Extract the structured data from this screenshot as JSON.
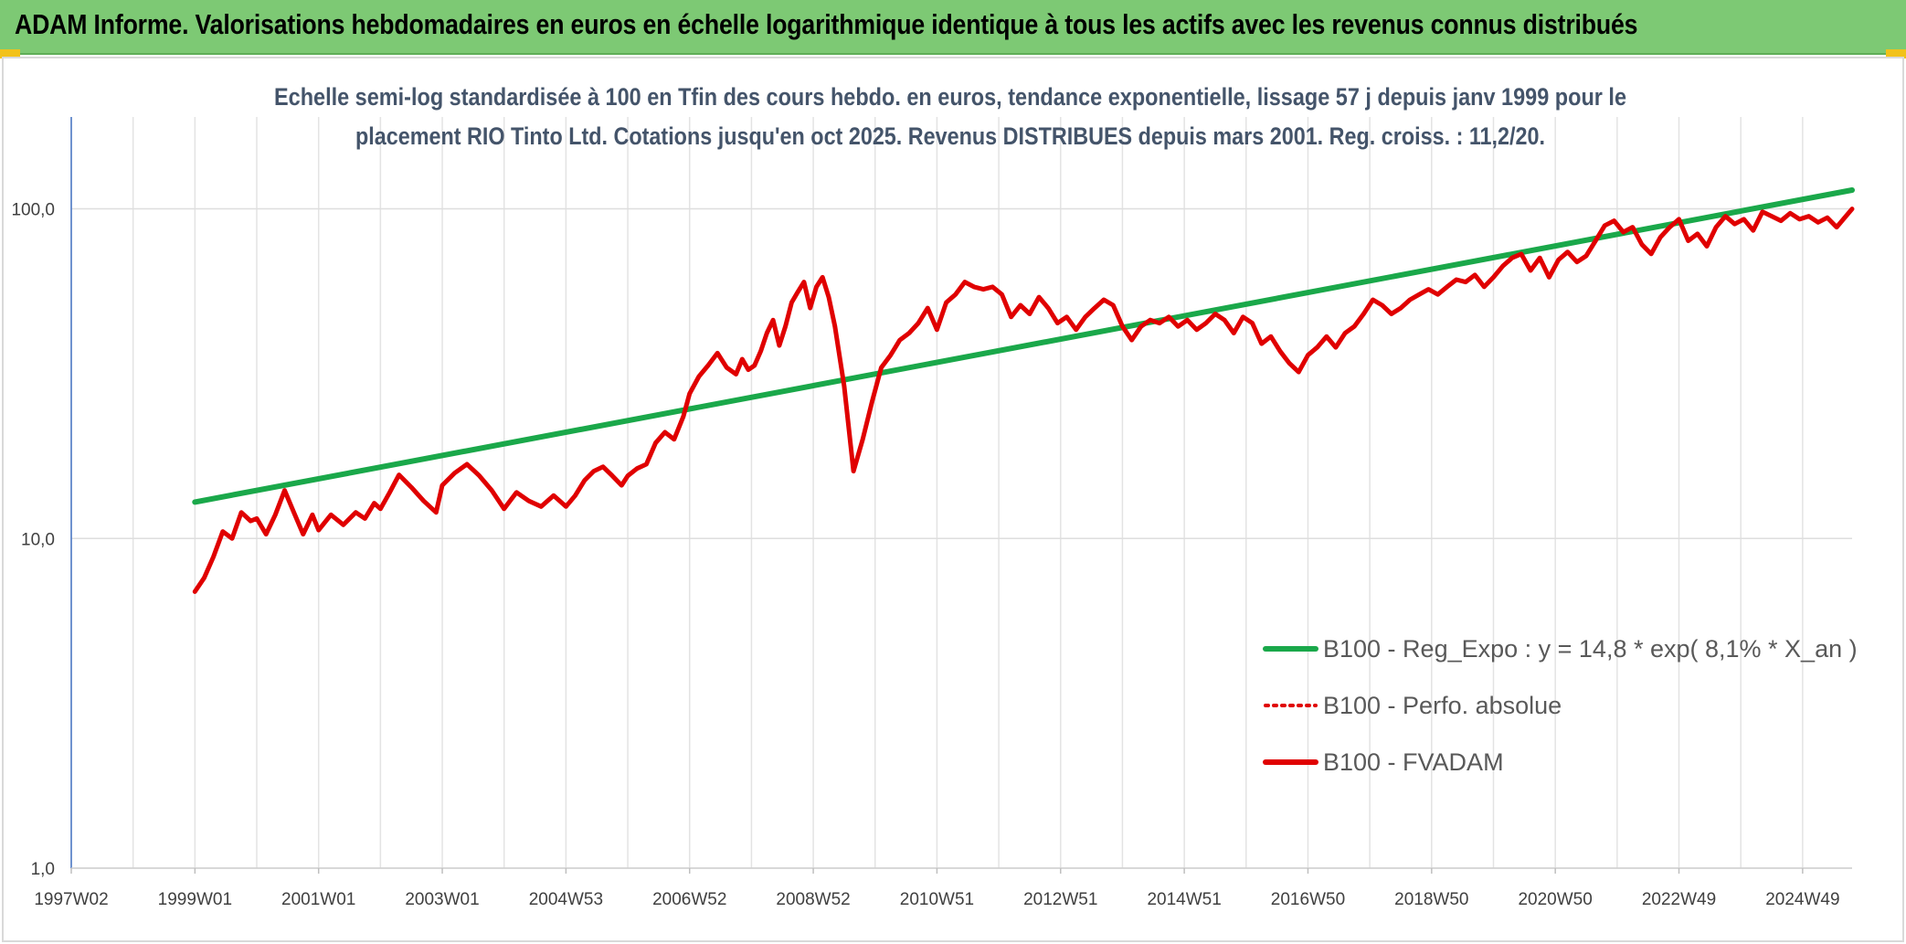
{
  "header": {
    "title": "ADAM Informe. Valorisations hebdomadaires en euros en échelle logarithmique identique à tous les actifs avec les revenus connus distribués",
    "background_color": "#7dc974",
    "accent_color": "#f2c21a"
  },
  "chart_data": {
    "type": "line",
    "title_lines": [
      "Echelle semi-log standardisée à 100 en Tfin des cours hebdo. en euros, tendance exponentielle, lissage 57 j depuis janv 1999 pour le",
      "placement RIO Tinto Ltd. Cotations jusqu'en oct 2025. Revenus DISTRIBUES depuis mars 2001. Reg. croiss. : 11,2/20."
    ],
    "y_scale": "log",
    "ylim": [
      1,
      190
    ],
    "y_ticks": [
      1,
      10,
      100
    ],
    "y_tick_labels": [
      "1,0",
      "10,0",
      "100,0"
    ],
    "xlim": [
      1997.0,
      2025.8
    ],
    "x_ticks": [
      1997.0,
      1999.0,
      2001.0,
      2003.0,
      2005.0,
      2007.0,
      2009.0,
      2011.0,
      2013.0,
      2015.0,
      2017.0,
      2019.0,
      2021.0,
      2023.0,
      2025.0
    ],
    "x_tick_labels": [
      "1997W02",
      "1999W01",
      "2001W01",
      "2003W01",
      "2004W53",
      "2006W52",
      "2008W52",
      "2010W51",
      "2012W51",
      "2014W51",
      "2016W50",
      "2018W50",
      "2020W50",
      "2022W49",
      "2024W49"
    ],
    "grid": true,
    "legend_position": "bottom-right",
    "series": [
      {
        "name": "B100 - Reg_Expo : y = 14,8 * exp( 8,1% *  X_an )",
        "color": "#1aa84a",
        "style": "solid",
        "x": [
          1999.0,
          2025.8
        ],
        "y": [
          12.9,
          114
        ]
      },
      {
        "name": "B100 - Perfo. absolue",
        "color": "#e00000",
        "style": "dotted",
        "x": [],
        "y": []
      },
      {
        "name": "B100 - FVADAM",
        "color": "#e00000",
        "style": "solid",
        "x": [
          1999.0,
          1999.15,
          1999.3,
          1999.45,
          1999.6,
          1999.75,
          1999.9,
          2000.0,
          2000.15,
          2000.3,
          2000.45,
          2000.6,
          2000.75,
          2000.9,
          2001.0,
          2001.2,
          2001.4,
          2001.6,
          2001.75,
          2001.9,
          2002.0,
          2002.15,
          2002.3,
          2002.5,
          2002.7,
          2002.9,
          2003.0,
          2003.2,
          2003.4,
          2003.6,
          2003.8,
          2004.0,
          2004.2,
          2004.4,
          2004.6,
          2004.8,
          2005.0,
          2005.15,
          2005.3,
          2005.45,
          2005.6,
          2005.75,
          2005.9,
          2006.0,
          2006.15,
          2006.3,
          2006.45,
          2006.6,
          2006.75,
          2006.9,
          2007.0,
          2007.15,
          2007.3,
          2007.45,
          2007.6,
          2007.75,
          2007.85,
          2007.95,
          2008.05,
          2008.15,
          2008.25,
          2008.35,
          2008.45,
          2008.55,
          2008.65,
          2008.75,
          2008.85,
          2008.95,
          2009.05,
          2009.15,
          2009.25,
          2009.35,
          2009.5,
          2009.65,
          2009.8,
          2009.95,
          2010.1,
          2010.25,
          2010.4,
          2010.55,
          2010.7,
          2010.85,
          2011.0,
          2011.15,
          2011.3,
          2011.45,
          2011.6,
          2011.75,
          2011.9,
          2012.05,
          2012.2,
          2012.35,
          2012.5,
          2012.65,
          2012.8,
          2012.95,
          2013.1,
          2013.25,
          2013.4,
          2013.55,
          2013.7,
          2013.85,
          2014.0,
          2014.15,
          2014.3,
          2014.45,
          2014.6,
          2014.75,
          2014.9,
          2015.05,
          2015.2,
          2015.35,
          2015.5,
          2015.65,
          2015.8,
          2015.95,
          2016.1,
          2016.25,
          2016.4,
          2016.55,
          2016.7,
          2016.85,
          2017.0,
          2017.15,
          2017.3,
          2017.45,
          2017.6,
          2017.75,
          2017.9,
          2018.05,
          2018.2,
          2018.35,
          2018.5,
          2018.65,
          2018.8,
          2018.95,
          2019.1,
          2019.25,
          2019.4,
          2019.55,
          2019.7,
          2019.85,
          2020.0,
          2020.15,
          2020.3,
          2020.45,
          2020.6,
          2020.75,
          2020.9,
          2021.05,
          2021.2,
          2021.35,
          2021.5,
          2021.65,
          2021.8,
          2021.95,
          2022.1,
          2022.25,
          2022.4,
          2022.55,
          2022.7,
          2022.85,
          2023.0,
          2023.15,
          2023.3,
          2023.45,
          2023.6,
          2023.75,
          2023.9,
          2024.05,
          2024.2,
          2024.35,
          2024.5,
          2024.65,
          2024.8,
          2024.95,
          2025.1,
          2025.25,
          2025.4,
          2025.55,
          2025.7,
          2025.8
        ],
        "y": [
          6.9,
          7.6,
          8.8,
          10.5,
          10.0,
          12.0,
          11.3,
          11.5,
          10.3,
          11.8,
          14.0,
          12.0,
          10.3,
          11.8,
          10.6,
          11.8,
          11.0,
          12.0,
          11.5,
          12.8,
          12.3,
          13.8,
          15.6,
          14.3,
          13.0,
          12.0,
          14.5,
          15.8,
          16.8,
          15.5,
          14.0,
          12.3,
          13.8,
          13.0,
          12.5,
          13.5,
          12.5,
          13.5,
          15.0,
          16.0,
          16.5,
          15.5,
          14.5,
          15.5,
          16.3,
          16.8,
          19.5,
          21.0,
          20.0,
          23.5,
          27.5,
          31.0,
          33.5,
          36.5,
          33.0,
          31.5,
          35.0,
          32.5,
          33.5,
          37.0,
          42.0,
          46.0,
          38.5,
          44.0,
          52.0,
          56.0,
          60.0,
          50.0,
          58.0,
          62.0,
          54.0,
          44.0,
          29.0,
          16.0,
          20.0,
          26.0,
          33.0,
          36.0,
          40.0,
          42.0,
          45.0,
          50.0,
          43.0,
          52.0,
          55.0,
          60.0,
          58.0,
          57.0,
          58.0,
          55.0,
          47.0,
          51.0,
          48.0,
          54.0,
          50.0,
          45.0,
          47.0,
          43.0,
          47.0,
          50.0,
          53.0,
          51.0,
          44.0,
          40.0,
          44.0,
          46.0,
          45.0,
          47.0,
          44.0,
          46.0,
          43.0,
          45.0,
          48.0,
          46.0,
          42.0,
          47.0,
          45.0,
          39.0,
          41.0,
          37.0,
          34.0,
          32.0,
          36.0,
          38.0,
          41.0,
          38.0,
          42.0,
          44.0,
          48.0,
          53.0,
          51.0,
          48.0,
          50.0,
          53.0,
          55.0,
          57.0,
          55.0,
          58.0,
          61.0,
          60.0,
          63.0,
          58.0,
          62.0,
          67.0,
          71.0,
          73.0,
          65.0,
          71.0,
          62.0,
          70.0,
          74.0,
          69.0,
          72.0,
          80.0,
          89.0,
          92.0,
          85.0,
          88.0,
          78.0,
          73.0,
          82.0,
          88.0,
          93.0,
          80.0,
          84.0,
          77.0,
          88.0,
          95.0,
          90.0,
          93.0,
          86.0,
          98.0,
          95.0,
          92.0,
          97.0,
          93.0,
          95.0,
          91.0,
          94.0,
          88.0,
          95.0,
          100.0
        ]
      }
    ]
  }
}
